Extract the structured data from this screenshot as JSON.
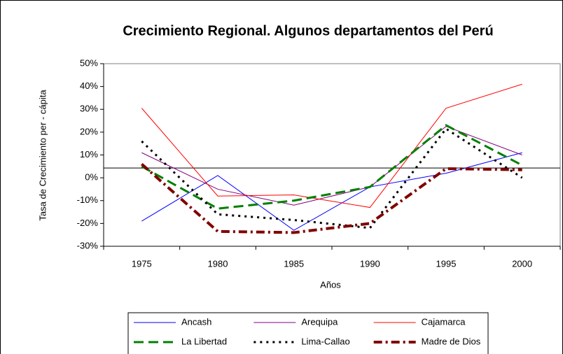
{
  "chart_data": {
    "type": "line",
    "title": "Crecimiento Regional. Algunos departamentos del Perú",
    "x_label": "Años",
    "y_label": "Tasa de Crecimiento per - cápita",
    "categories": [
      "1975",
      "1980",
      "1985",
      "1990",
      "1995",
      "2000"
    ],
    "ylim": [
      -30,
      50
    ],
    "yticks": [
      {
        "value": -30,
        "label": "-30%"
      },
      {
        "value": -20,
        "label": "-20%"
      },
      {
        "value": -10,
        "label": "-10%"
      },
      {
        "value": 0,
        "label": "0%"
      },
      {
        "value": 10,
        "label": "10%"
      },
      {
        "value": 20,
        "label": "20%"
      },
      {
        "value": 30,
        "label": "30%"
      },
      {
        "value": 40,
        "label": "40%"
      },
      {
        "value": 50,
        "label": "50%"
      }
    ],
    "reference_line": 4.3,
    "grid": false,
    "legend": "bottom",
    "series": [
      {
        "name": "Ancash",
        "color": "#0000ff",
        "line_style": "solid",
        "line_width": 1,
        "values": [
          -19,
          1,
          -23,
          -4,
          2,
          11
        ]
      },
      {
        "name": "Arequipa",
        "color": "#800080",
        "line_style": "solid",
        "line_width": 1,
        "values": [
          11,
          -5,
          -12,
          -4,
          22.5,
          10
        ]
      },
      {
        "name": "Cajamarca",
        "color": "#ff0000",
        "line_style": "solid",
        "line_width": 1,
        "values": [
          30.5,
          -8,
          -7.5,
          -13,
          30.5,
          41
        ]
      },
      {
        "name": "La Libertad",
        "color": "#008000",
        "line_style": "dashed",
        "line_width": 3,
        "values": [
          5,
          -13.5,
          -10,
          -4,
          23,
          5.5
        ]
      },
      {
        "name": "Lima-Callao",
        "color": "#000000",
        "line_style": "dotted",
        "line_width": 3,
        "values": [
          16,
          -16,
          -18.5,
          -22,
          21.5,
          0
        ]
      },
      {
        "name": "Madre de Dios",
        "color": "#800000",
        "line_style": "dashdot",
        "line_width": 4,
        "values": [
          6,
          -23.5,
          -24,
          -20,
          4,
          3.5
        ]
      }
    ]
  }
}
